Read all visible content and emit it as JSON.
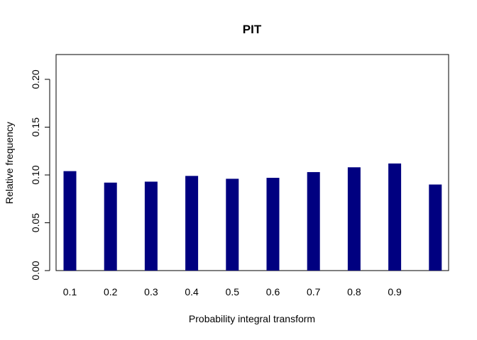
{
  "chart_data": {
    "type": "bar",
    "title": "PIT",
    "xlabel": "Probability integral transform",
    "ylabel": "Relative frequency",
    "categories": [
      "0.1",
      "0.2",
      "0.3",
      "0.4",
      "0.5",
      "0.6",
      "0.7",
      "0.8",
      "0.9",
      ""
    ],
    "values": [
      0.104,
      0.092,
      0.093,
      0.099,
      0.096,
      0.097,
      0.103,
      0.108,
      0.112,
      0.09
    ],
    "ylim": [
      0,
      0.225
    ],
    "yticks": [
      "0.00",
      "0.05",
      "0.10",
      "0.15",
      "0.20"
    ],
    "bar_color": "#000080",
    "grid": false,
    "legend": "none"
  }
}
